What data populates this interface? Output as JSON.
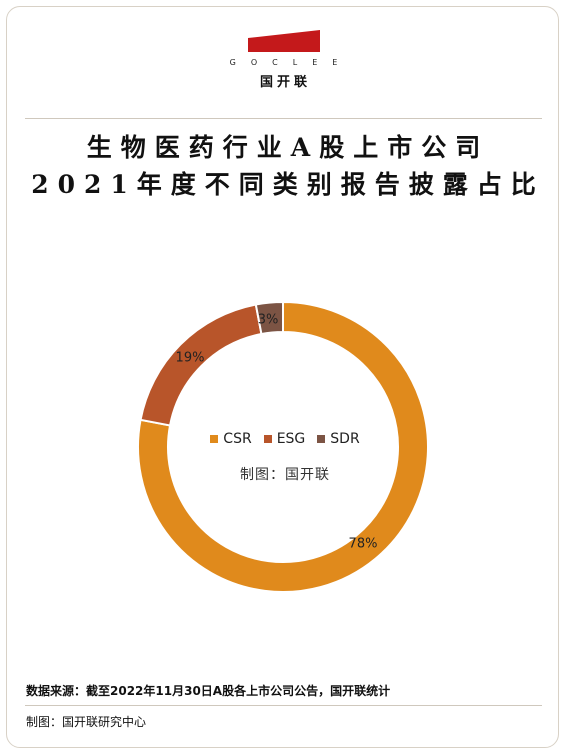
{
  "brand": {
    "name_en": "GOCLEE",
    "name_cn": "国开联",
    "logo_color": "#c4191b"
  },
  "title_line1": "生物医药行业A股上市公司",
  "title_line2": "2021年度不同类别报告披露占比",
  "chart_data": {
    "type": "pie",
    "variant": "donut",
    "title": "生物医药行业A股上市公司2021年度不同类别报告披露占比",
    "categories": [
      "CSR",
      "ESG",
      "SDR"
    ],
    "values": [
      78,
      19,
      3
    ],
    "labels": [
      "78%",
      "19%",
      "3%"
    ],
    "colors": [
      "#e08a1c",
      "#b8552a",
      "#7c5444"
    ],
    "legend_position": "center",
    "center_text": "制图：国开联"
  },
  "footer": {
    "source": "数据来源：截至2022年11月30日A股各上市公司公告，国开联统计",
    "maker": "制图：国开联研究中心"
  }
}
